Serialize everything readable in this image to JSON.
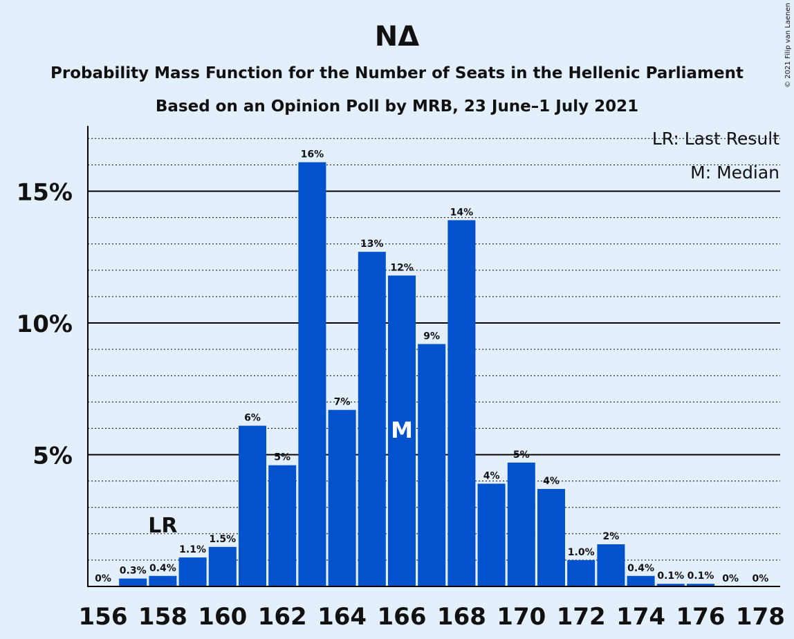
{
  "chart_data": {
    "type": "bar",
    "title": "ΝΔ",
    "subtitle_1": "Probability Mass Function for the Number of Seats in the Hellenic Parliament",
    "subtitle_2": "Based on an Opinion Poll by MRB, 23 June–1 July 2021",
    "copyright": "© 2021 Filip van Laenen",
    "legend": [
      "LR: Last Result",
      "M: Median"
    ],
    "legend_position": "top-right",
    "categories": [
      156,
      157,
      158,
      159,
      160,
      161,
      162,
      163,
      164,
      165,
      166,
      167,
      168,
      169,
      170,
      171,
      172,
      173,
      174,
      175,
      176,
      177,
      178
    ],
    "values": [
      0,
      0.3,
      0.4,
      1.1,
      1.5,
      6.1,
      4.6,
      16.1,
      6.7,
      12.7,
      11.8,
      9.2,
      13.9,
      3.9,
      4.7,
      3.7,
      1.0,
      1.6,
      0.4,
      0.1,
      0.1,
      0,
      0
    ],
    "labels": [
      "0%",
      "0.3%",
      "0.4%",
      "1.1%",
      "1.5%",
      "6%",
      "5%",
      "16%",
      "7%",
      "13%",
      "12%",
      "9%",
      "14%",
      "4%",
      "5%",
      "4%",
      "1.0%",
      "2%",
      "0.4%",
      "0.1%",
      "0.1%",
      "0%",
      "0%"
    ],
    "x_tick_labels": [
      "156",
      "158",
      "160",
      "162",
      "164",
      "166",
      "168",
      "170",
      "172",
      "174",
      "176",
      "178"
    ],
    "y_tick_labels": [
      "5%",
      "10%",
      "15%"
    ],
    "y_ticks": [
      5,
      10,
      15
    ],
    "y_minor_step": 1,
    "ylim": [
      0,
      17.5
    ],
    "last_result": {
      "seat": 158,
      "label": "LR"
    },
    "median": {
      "seat": 166,
      "label": "M"
    },
    "colors": {
      "bar": "#0152cc",
      "background": "#e3f0fc",
      "axis": "#000000",
      "median_text": "#ffffff"
    }
  }
}
